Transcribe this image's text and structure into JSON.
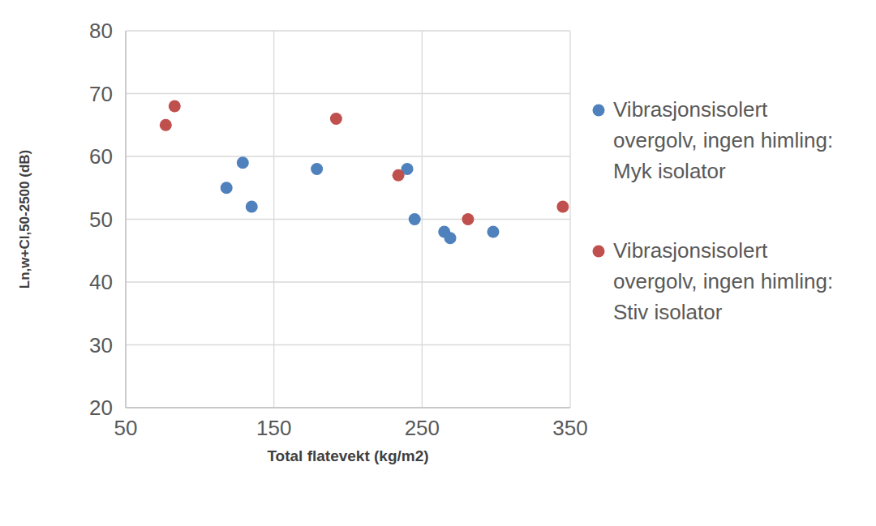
{
  "chart_data": {
    "type": "scatter",
    "x_label": "Total flatevekt (kg/m2)",
    "y_label": "Ln,w+CI,50-2500 (dB)",
    "xlim": [
      50,
      350
    ],
    "xticks": [
      50,
      150,
      250,
      350
    ],
    "ylim": [
      20,
      80
    ],
    "yticks": [
      20,
      30,
      40,
      50,
      60,
      70,
      80
    ],
    "grid": true,
    "legend": "right",
    "series": [
      {
        "name": "Vibrasjonsisolert overgolv, ingen himling: Myk isolator",
        "color": "#4f81bd",
        "marker": "circle",
        "x": [
          118,
          129,
          135,
          179,
          240,
          245,
          265,
          269,
          298
        ],
        "values": [
          55,
          59,
          52,
          58,
          58,
          50,
          48,
          47,
          48
        ]
      },
      {
        "name": "Vibrasjonsisolert overgolv, ingen himling: Stiv isolator",
        "color": "#c0504d",
        "marker": "circle",
        "x": [
          77,
          83,
          192,
          234,
          281,
          345
        ],
        "values": [
          65,
          68,
          66,
          57,
          50,
          52
        ]
      }
    ]
  }
}
